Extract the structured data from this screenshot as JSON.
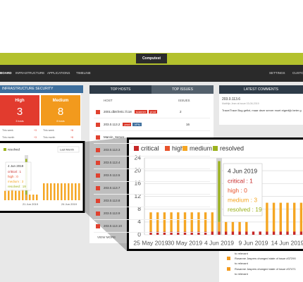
{
  "header": {
    "logo": "Computest"
  },
  "nav": {
    "left": [
      "BOARD",
      "INFRASTRUCTURE",
      "APPLICATIONS",
      "TIMELINE"
    ],
    "right": [
      "SETTINGS",
      "CUSTOM"
    ]
  },
  "infra": {
    "title": "INFRASTRUCTURE SECURITY",
    "cards": [
      {
        "label": "High",
        "count": "3",
        "sub": "3 hosts"
      },
      {
        "label": "Medium",
        "count": "8",
        "sub": "8 hosts"
      }
    ],
    "rows": [
      [
        "This week",
        "+3",
        "This week",
        "+8"
      ],
      [
        "This month",
        "+3",
        "This month",
        "+8"
      ]
    ]
  },
  "hosts": {
    "tabs": [
      "TOP HOSTS",
      "TOP ISSUES"
    ],
    "columns": [
      "HOST",
      "ISSUES"
    ],
    "rows": [
      {
        "host": "2001:db8:fe01::fc18",
        "tags": [
          "scanner",
          "prod"
        ],
        "issues": "2"
      },
      {
        "host": "203.0.113.2",
        "tags": [
          "prod",
          "VPN"
        ],
        "issues": "16"
      },
      {
        "host": "Marvin_Server"
      },
      {
        "host": "203.0.113.3"
      },
      {
        "host": "203.0.113.4"
      },
      {
        "host": "203.0.113.5"
      },
      {
        "host": "203.0.113.7"
      },
      {
        "host": "203.0.113.8"
      },
      {
        "host": "203.0.113.9"
      },
      {
        "host": "203.0.113.10"
      }
    ],
    "more": "VIEW MORE"
  },
  "comments": {
    "title": "LATEST COMMENTS",
    "host": "203.0.113.6",
    "meta": "Matthijs Jean at issue 03-06-2019",
    "text": "Trace/Trace Bug gefixt, maar deze server moet eigenlijk beter g"
  },
  "activity": [
    {
      "lines": [
        "to relevant"
      ]
    },
    {
      "lines": [
        "Rosanne Jaspers changed state of issue #37290",
        "to relevant"
      ]
    },
    {
      "lines": [
        "Rosanne Jaspers changed state of issue #37471",
        "to relevant"
      ]
    }
  ],
  "small_chart": {
    "legend": "resolved",
    "dropdown": "Last Month",
    "x_labels": [
      "21 Jun 2019",
      "24 Jun 2019"
    ],
    "ylim": [
      0,
      24
    ],
    "medium": [
      5,
      5,
      6,
      5,
      5,
      6,
      3,
      3,
      3,
      3,
      0,
      9,
      9,
      9,
      9,
      9,
      9,
      9,
      9,
      9,
      9,
      9
    ],
    "resolved": [
      0,
      0,
      0,
      0,
      0,
      0,
      19,
      0,
      0,
      0,
      0,
      0,
      0,
      0,
      0,
      0,
      0,
      0,
      0,
      0,
      0,
      0
    ]
  },
  "chart_data": {
    "type": "bar",
    "stacked": true,
    "grid": true,
    "categories": [
      "25 May 2019",
      null,
      null,
      null,
      null,
      "30 May 2019",
      null,
      null,
      null,
      null,
      "4 Jun 2019",
      null,
      null,
      null,
      null,
      "9 Jun 2019",
      null,
      null,
      null,
      null,
      "14 Jun 2019",
      null,
      null
    ],
    "series": [
      {
        "name": "critical",
        "color": "#c62828",
        "values": [
          1,
          1,
          1,
          1,
          1,
          1,
          1,
          1,
          1,
          1,
          1,
          1,
          1,
          1,
          1,
          1,
          1,
          1,
          1,
          1,
          1,
          1,
          1
        ]
      },
      {
        "name": "high",
        "color": "#e8532b",
        "values": [
          0,
          0,
          0,
          0,
          0,
          0,
          0,
          0,
          0,
          0,
          0,
          0,
          0,
          0,
          0,
          0,
          0,
          0,
          0,
          0,
          0,
          0,
          0
        ]
      },
      {
        "name": "medium",
        "color": "#f5a623",
        "values": [
          6,
          6,
          6,
          6,
          6,
          6,
          6,
          6,
          6,
          6,
          3,
          3,
          3,
          3,
          3,
          0,
          0,
          9,
          9,
          9,
          9,
          9,
          9
        ]
      },
      {
        "name": "resolved",
        "color": "#9cb21e",
        "values": [
          0,
          0,
          0,
          0,
          0,
          0,
          0,
          0,
          0,
          0,
          19,
          0,
          0,
          0,
          0,
          0,
          0,
          0,
          0,
          0,
          0,
          0,
          0
        ]
      }
    ],
    "ylim": [
      0,
      24
    ],
    "yticks": [
      0,
      4,
      8,
      12,
      16,
      20,
      24
    ],
    "tooltip": {
      "title": "4 Jun 2019",
      "lines": [
        "critical : 1",
        "high : 0",
        "medium : 3",
        "resolved : 19"
      ]
    }
  }
}
